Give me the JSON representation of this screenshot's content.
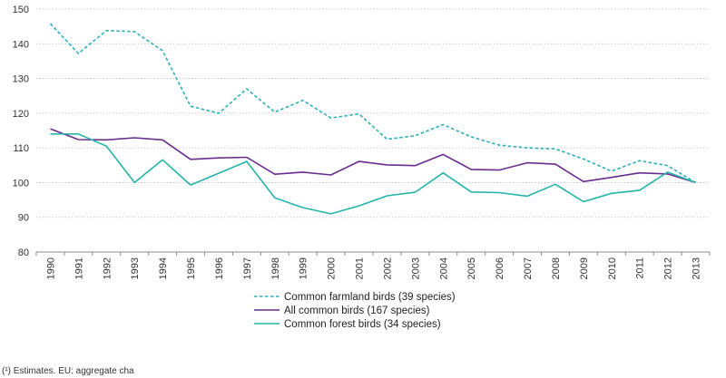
{
  "chart_data": {
    "type": "line",
    "title": "",
    "xlabel": "",
    "ylabel": "",
    "categories": [
      "1990",
      "1991",
      "1992",
      "1993",
      "1994",
      "1995",
      "1996",
      "1997",
      "1998",
      "1999",
      "2000",
      "2001",
      "2002",
      "2003",
      "2004",
      "2005",
      "2006",
      "2007",
      "2008",
      "2009",
      "2010",
      "2011",
      "2012",
      "2013"
    ],
    "ylim": [
      80,
      150
    ],
    "yticks": [
      80,
      90,
      100,
      110,
      120,
      130,
      140,
      150
    ],
    "grid": true,
    "series": [
      {
        "name": "Common farmland birds (39 species)",
        "color": "#2bb0b8",
        "style": "dashed",
        "values": [
          145.8,
          137.2,
          143.8,
          143.5,
          138.0,
          122.0,
          120.0,
          127.0,
          120.3,
          123.7,
          118.6,
          119.8,
          112.5,
          113.5,
          116.7,
          113.2,
          110.8,
          110.0,
          109.7,
          106.8,
          103.3,
          106.3,
          104.9,
          100.0
        ]
      },
      {
        "name": "All common birds (167 species)",
        "color": "#6b2c8f",
        "style": "solid",
        "values": [
          115.5,
          112.4,
          112.3,
          112.9,
          112.3,
          106.7,
          107.1,
          107.3,
          102.4,
          103.0,
          102.2,
          106.1,
          105.1,
          104.9,
          108.1,
          103.8,
          103.6,
          105.7,
          105.3,
          100.3,
          101.5,
          102.8,
          102.5,
          100.0
        ]
      },
      {
        "name": "Common forest birds (34 species)",
        "color": "#25b5a8",
        "style": "solid",
        "values": [
          114.0,
          114.0,
          110.5,
          100.0,
          106.6,
          99.3,
          102.7,
          106.1,
          95.6,
          92.8,
          91.0,
          93.3,
          96.2,
          97.2,
          102.8,
          97.3,
          97.1,
          96.1,
          99.5,
          94.5,
          96.9,
          97.8,
          103.0,
          100.0
        ]
      }
    ]
  },
  "footnote": "(¹) Estimates. EU: aggregate cha"
}
